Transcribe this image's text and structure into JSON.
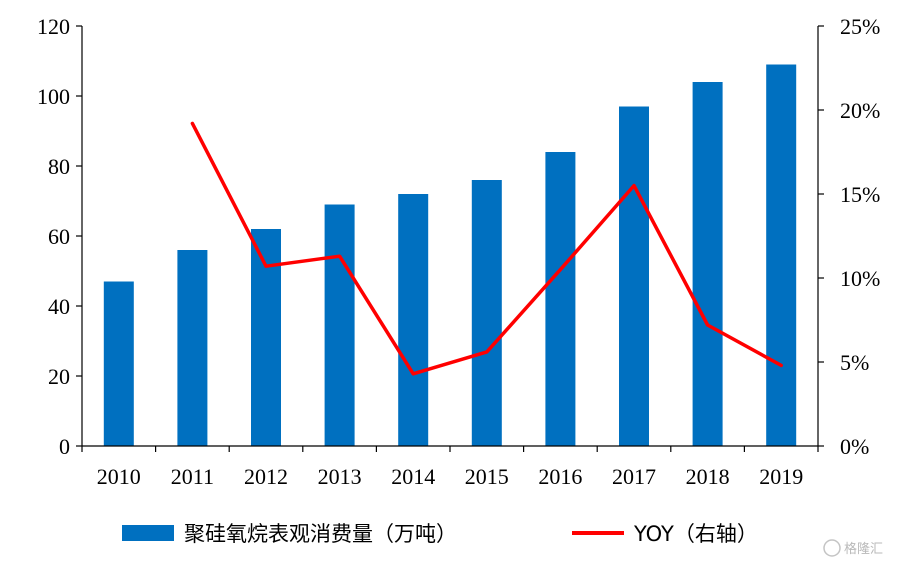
{
  "chart_data": {
    "type": "bar+line",
    "categories": [
      "2010",
      "2011",
      "2012",
      "2013",
      "2014",
      "2015",
      "2016",
      "2017",
      "2018",
      "2019"
    ],
    "series": [
      {
        "name": "聚硅氧烷表观消费量（万吨）",
        "type": "bar",
        "axis": "left",
        "color": "#0070c0",
        "values": [
          47,
          56,
          62,
          69,
          72,
          76,
          84,
          97,
          104,
          109
        ]
      },
      {
        "name": "YOY（右轴）",
        "type": "line",
        "axis": "right",
        "color": "#ff0000",
        "values": [
          null,
          19.2,
          10.7,
          11.3,
          4.3,
          5.6,
          10.5,
          15.5,
          7.2,
          4.8
        ]
      }
    ],
    "y_left": {
      "lim": [
        0,
        120
      ],
      "ticks": [
        "0",
        "20",
        "40",
        "60",
        "80",
        "100",
        "120"
      ]
    },
    "y_right": {
      "lim": [
        0,
        25
      ],
      "ticks": [
        "0%",
        "5%",
        "10%",
        "15%",
        "20%",
        "25%"
      ]
    },
    "legend": "bottom",
    "grid": false
  },
  "watermark": {
    "text": "格隆汇"
  }
}
